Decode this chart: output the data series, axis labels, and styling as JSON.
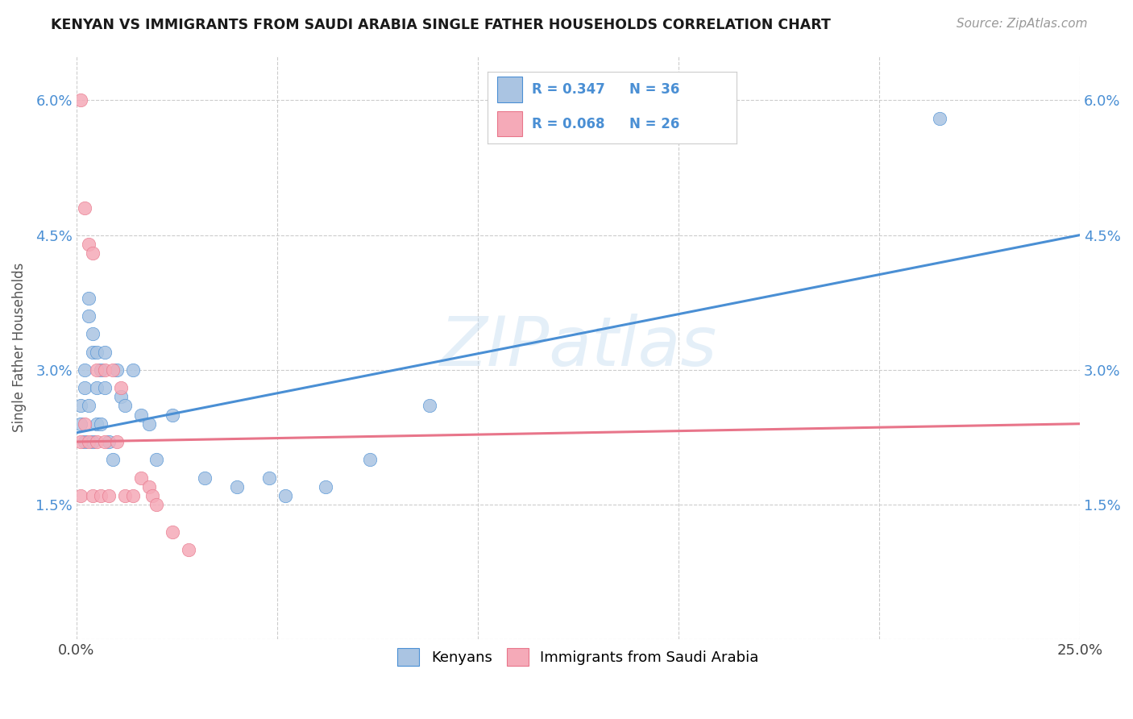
{
  "title": "KENYAN VS IMMIGRANTS FROM SAUDI ARABIA SINGLE FATHER HOUSEHOLDS CORRELATION CHART",
  "source": "Source: ZipAtlas.com",
  "ylabel": "Single Father Households",
  "xlim": [
    0.0,
    0.25
  ],
  "ylim": [
    0.0,
    0.065
  ],
  "xticks": [
    0.0,
    0.05,
    0.1,
    0.15,
    0.2,
    0.25
  ],
  "xticklabels": [
    "0.0%",
    "",
    "",
    "",
    "",
    "25.0%"
  ],
  "yticks": [
    0.0,
    0.015,
    0.03,
    0.045,
    0.06
  ],
  "yticklabels_left": [
    "",
    "1.5%",
    "3.0%",
    "4.5%",
    "6.0%"
  ],
  "yticklabels_right": [
    "",
    "1.5%",
    "3.0%",
    "4.5%",
    "6.0%"
  ],
  "kenyans_R": 0.347,
  "kenyans_N": 36,
  "saudi_R": 0.068,
  "saudi_N": 26,
  "kenyans_color": "#aac4e2",
  "saudi_color": "#f5aab8",
  "trendline_kenyan_color": "#4a8fd4",
  "trendline_saudi_color": "#e8758a",
  "watermark": "ZIPatlas",
  "legend_kenyan_label": "Kenyans",
  "legend_saudi_label": "Immigrants from Saudi Arabia",
  "kenyan_trend_x0": 0.0,
  "kenyan_trend_y0": 0.023,
  "kenyan_trend_x1": 0.25,
  "kenyan_trend_y1": 0.045,
  "saudi_trend_x0": 0.0,
  "saudi_trend_y0": 0.022,
  "saudi_trend_x1": 0.25,
  "saudi_trend_y1": 0.024,
  "kenyans_x": [
    0.001,
    0.001,
    0.002,
    0.002,
    0.002,
    0.003,
    0.003,
    0.003,
    0.004,
    0.004,
    0.004,
    0.005,
    0.005,
    0.005,
    0.006,
    0.006,
    0.007,
    0.007,
    0.008,
    0.009,
    0.01,
    0.011,
    0.012,
    0.014,
    0.016,
    0.018,
    0.02,
    0.024,
    0.032,
    0.04,
    0.048,
    0.052,
    0.062,
    0.073,
    0.088,
    0.215
  ],
  "kenyans_y": [
    0.026,
    0.024,
    0.03,
    0.028,
    0.022,
    0.038,
    0.036,
    0.026,
    0.034,
    0.032,
    0.022,
    0.032,
    0.028,
    0.024,
    0.03,
    0.024,
    0.032,
    0.028,
    0.022,
    0.02,
    0.03,
    0.027,
    0.026,
    0.03,
    0.025,
    0.024,
    0.02,
    0.025,
    0.018,
    0.017,
    0.018,
    0.016,
    0.017,
    0.02,
    0.026,
    0.058
  ],
  "saudi_x": [
    0.001,
    0.001,
    0.001,
    0.002,
    0.002,
    0.003,
    0.003,
    0.004,
    0.004,
    0.005,
    0.005,
    0.006,
    0.007,
    0.007,
    0.008,
    0.009,
    0.01,
    0.011,
    0.012,
    0.014,
    0.016,
    0.018,
    0.019,
    0.02,
    0.024,
    0.028
  ],
  "saudi_y": [
    0.06,
    0.022,
    0.016,
    0.048,
    0.024,
    0.044,
    0.022,
    0.043,
    0.016,
    0.03,
    0.022,
    0.016,
    0.03,
    0.022,
    0.016,
    0.03,
    0.022,
    0.028,
    0.016,
    0.016,
    0.018,
    0.017,
    0.016,
    0.015,
    0.012,
    0.01
  ]
}
